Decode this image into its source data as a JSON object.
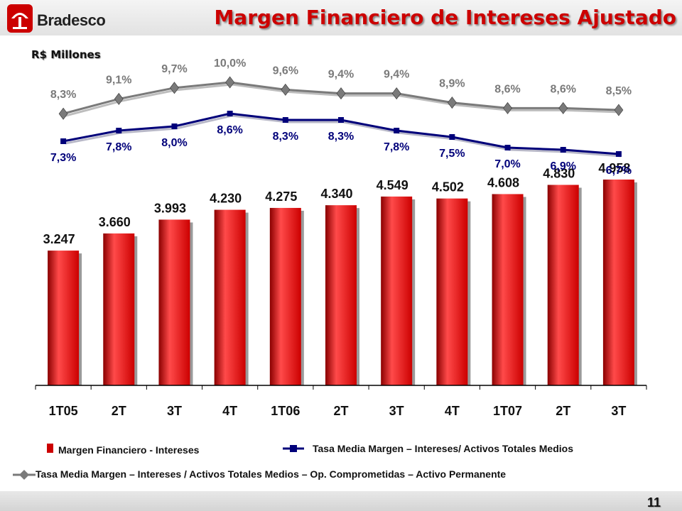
{
  "header": {
    "brand": "Bradesco",
    "title": "Margen Financiero de Intereses Ajustado"
  },
  "subtitle": "R$ Millones",
  "colors": {
    "bar": "#cc0000",
    "bar_dark": "#8a0000",
    "bar_light": "#ff4a4a",
    "line_navy": "#00007a",
    "line_gray": "#7a7a7a",
    "title": "#cc0000"
  },
  "chart_data": {
    "type": "bar",
    "categories": [
      "1T05",
      "2T",
      "3T",
      "4T",
      "1T06",
      "2T",
      "3T",
      "4T",
      "1T07",
      "2T",
      "3T"
    ],
    "series": [
      {
        "name": "Margen Financiero - Intereses",
        "type": "bar",
        "values": [
          3247,
          3660,
          3993,
          4230,
          4275,
          4340,
          4549,
          4502,
          4608,
          4830,
          4958
        ],
        "labels": [
          "3.247",
          "3.660",
          "3.993",
          "4.230",
          "4.275",
          "4.340",
          "4.549",
          "4.502",
          "4.608",
          "4.830",
          "4.958"
        ]
      },
      {
        "name": "Tasa Media Margen – Intereses/ Activos Totales Medios",
        "type": "line",
        "values": [
          7.3,
          7.8,
          8.0,
          8.6,
          8.3,
          8.3,
          7.8,
          7.5,
          7.0,
          6.9,
          6.7
        ],
        "labels": [
          "7,3%",
          "7,8%",
          "8,0%",
          "8,6%",
          "8,3%",
          "8,3%",
          "7,8%",
          "7,5%",
          "7,0%",
          "6,9%",
          "6,7%"
        ]
      },
      {
        "name": "Tasa Media Margen – Intereses / Activos Totales Medios – Op. Comprometidas – Activo Permanente",
        "type": "line",
        "values": [
          8.3,
          9.1,
          9.7,
          10.0,
          9.6,
          9.4,
          9.4,
          8.9,
          8.6,
          8.6,
          8.5
        ],
        "labels": [
          "8,3%",
          "9,1%",
          "9,7%",
          "10,0%",
          "9,6%",
          "9,4%",
          "9,4%",
          "8,9%",
          "8,6%",
          "8,6%",
          "8,5%"
        ]
      }
    ],
    "ylim_bars": [
      0,
      5300
    ],
    "grid": false,
    "legend_position": "bottom"
  },
  "legend": {
    "bars": "Margen Financiero - Intereses",
    "navy": "Tasa Media Margen – Intereses/ Activos Totales Medios",
    "gray": "Tasa Media Margen – Intereses / Activos Totales Medios – Op. Comprometidas – Activo Permanente"
  },
  "page_number": "11"
}
